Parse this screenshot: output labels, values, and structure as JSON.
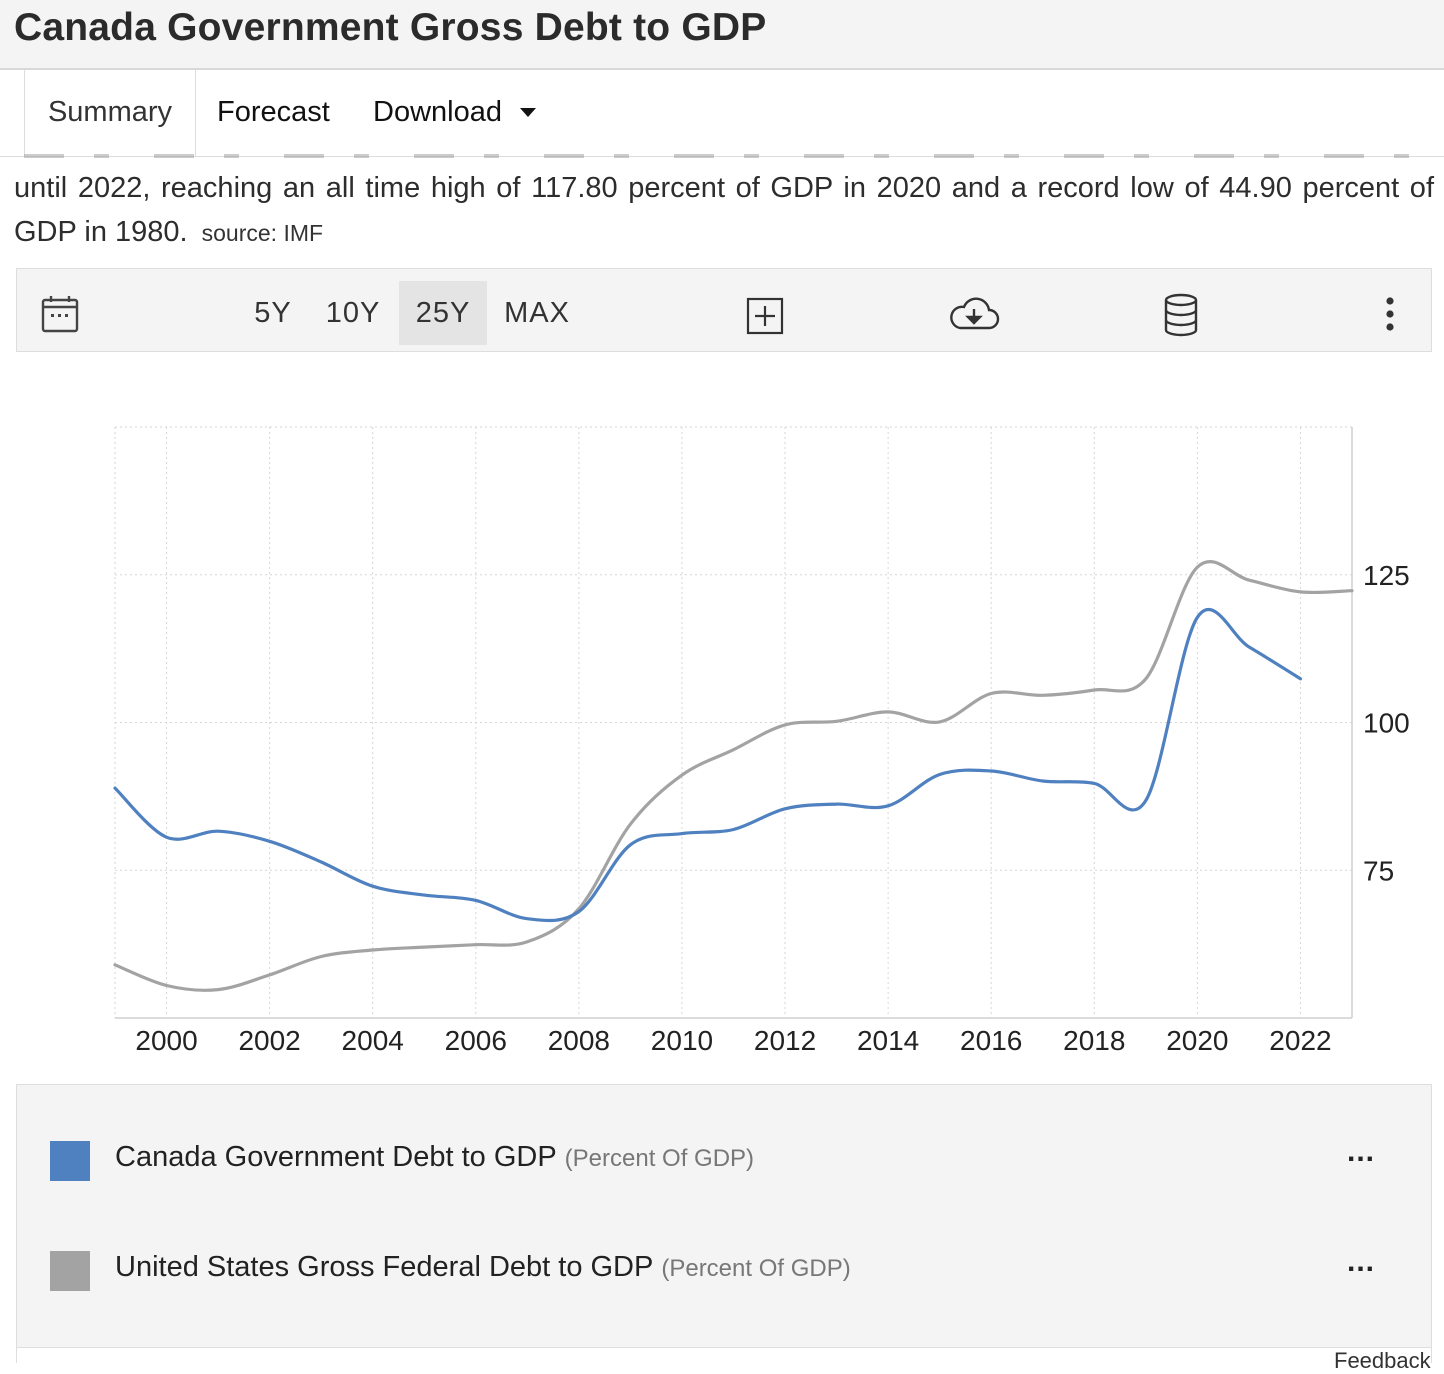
{
  "page": {
    "title": "Canada Government Gross Debt to GDP",
    "tabs": [
      "Summary",
      "Forecast",
      "Download"
    ],
    "description": "until 2022, reaching an all time high of 117.80 percent of GDP in 2020 and a record low of 44.90 percent of GDP in 1980.",
    "source": "source: IMF",
    "feedback": "Feedback"
  },
  "toolbar": {
    "icons": [
      "calendar-icon",
      "add-indicator-icon",
      "cloud-download-icon",
      "database-icon",
      "more-vert-icon"
    ],
    "ranges": [
      "5Y",
      "10Y",
      "25Y",
      "MAX"
    ],
    "selected_range": "25Y"
  },
  "legend": [
    {
      "name": "Canada Government Debt to GDP",
      "unit": "(Percent Of GDP)",
      "color": "#4f80bf",
      "more": "..."
    },
    {
      "name": "United States Gross Federal Debt to GDP",
      "unit": "(Percent Of GDP)",
      "color": "#a3a3a3",
      "more": "..."
    }
  ],
  "chart_data": {
    "type": "line",
    "title": "",
    "xlabel": "",
    "ylabel": "",
    "x_ticks": [
      2000,
      2002,
      2004,
      2006,
      2008,
      2010,
      2012,
      2014,
      2016,
      2018,
      2020,
      2022
    ],
    "y_ticks": [
      75,
      100,
      125
    ],
    "xlim": [
      1999,
      2023
    ],
    "ylim": [
      50,
      150
    ],
    "grid": true,
    "series": [
      {
        "name": "Canada Government Debt to GDP",
        "color": "#4f80bf",
        "x": [
          1999,
          2000,
          2001,
          2002,
          2003,
          2004,
          2005,
          2006,
          2007,
          2008,
          2009,
          2010,
          2011,
          2012,
          2013,
          2014,
          2015,
          2016,
          2017,
          2018,
          2019,
          2020,
          2021,
          2022
        ],
        "y": [
          88.9,
          80.6,
          81.6,
          79.9,
          76.4,
          72.3,
          70.8,
          69.9,
          66.8,
          68.0,
          79.3,
          81.2,
          81.9,
          85.4,
          86.2,
          85.9,
          91.2,
          91.8,
          90.1,
          89.7,
          86.8,
          117.8,
          112.8,
          107.4
        ]
      },
      {
        "name": "United States Gross Federal Debt to GDP",
        "color": "#a3a3a3",
        "x": [
          1999,
          2000,
          2001,
          2002,
          2003,
          2004,
          2005,
          2006,
          2007,
          2008,
          2009,
          2010,
          2011,
          2012,
          2013,
          2014,
          2015,
          2016,
          2017,
          2018,
          2019,
          2020,
          2021,
          2022,
          2023
        ],
        "y": [
          59.0,
          55.5,
          54.8,
          57.3,
          60.4,
          61.5,
          62.0,
          62.4,
          62.9,
          68.5,
          82.8,
          91.1,
          95.4,
          99.6,
          100.2,
          101.8,
          100.1,
          104.9,
          104.6,
          105.5,
          107.4,
          126.3,
          124.1,
          122.1,
          122.3
        ]
      }
    ]
  }
}
